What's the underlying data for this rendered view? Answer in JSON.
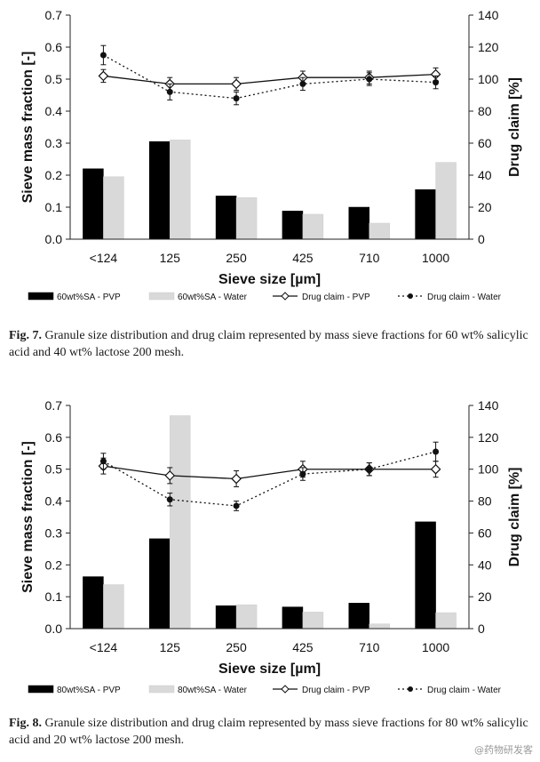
{
  "figures": [
    {
      "caption_label": "Fig. 7.",
      "caption_text": "Granule size distribution and drug claim represented by mass sieve fractions for 60 wt% salicylic acid and 40 wt% lactose 200 mesh.",
      "chart_data": {
        "type": "bar",
        "categories": [
          "<124",
          "125",
          "250",
          "425",
          "710",
          "1000"
        ],
        "xlabel": "Sieve size [µm]",
        "ylabel": "Sieve mass fraction [-]",
        "y2label": "Drug claim [%]",
        "ylim": [
          0,
          0.7
        ],
        "yticks": [
          "0.0",
          "0.1",
          "0.2",
          "0.3",
          "0.4",
          "0.5",
          "0.6",
          "0.7"
        ],
        "y2lim": [
          0,
          140
        ],
        "y2ticks": [
          "0",
          "20",
          "40",
          "60",
          "80",
          "100",
          "120",
          "140"
        ],
        "grid": false,
        "legend_position": "bottom",
        "series": [
          {
            "name": "60wt%SA - PVP",
            "kind": "bar",
            "axis": "left",
            "color": "#000000",
            "values": [
              0.22,
              0.305,
              0.135,
              0.088,
              0.1,
              0.155
            ]
          },
          {
            "name": "60wt%SA - Water",
            "kind": "bar",
            "axis": "left",
            "color": "#d9d9d9",
            "values": [
              0.195,
              0.31,
              0.13,
              0.078,
              0.05,
              0.24
            ]
          },
          {
            "name": "Drug claim - PVP",
            "kind": "line",
            "axis": "right",
            "marker": "open-diamond",
            "style": "solid",
            "values": [
              102,
              97,
              97,
              101,
              101,
              103
            ],
            "errors": [
              4,
              4,
              4,
              4,
              4,
              4
            ]
          },
          {
            "name": "Drug claim - Water",
            "kind": "line",
            "axis": "right",
            "marker": "filled-circle",
            "style": "dotted",
            "values": [
              115,
              92,
              88,
              97,
              100,
              98
            ],
            "errors": [
              6,
              5,
              4,
              4,
              4,
              4
            ]
          }
        ]
      }
    },
    {
      "caption_label": "Fig. 8.",
      "caption_text": "Granule size distribution and drug claim represented by mass sieve fractions for 80 wt% salicylic acid and 20 wt% lactose 200 mesh.",
      "chart_data": {
        "type": "bar",
        "categories": [
          "<124",
          "125",
          "250",
          "425",
          "710",
          "1000"
        ],
        "xlabel": "Sieve size [µm]",
        "ylabel": "Sieve mass fraction [-]",
        "y2label": "Drug claim [%]",
        "ylim": [
          0,
          0.7
        ],
        "yticks": [
          "0.0",
          "0.1",
          "0.2",
          "0.3",
          "0.4",
          "0.5",
          "0.6",
          "0.7"
        ],
        "y2lim": [
          0,
          140
        ],
        "y2ticks": [
          "0",
          "20",
          "40",
          "60",
          "80",
          "100",
          "120",
          "140"
        ],
        "grid": false,
        "legend_position": "bottom",
        "series": [
          {
            "name": "80wt%SA - PVP",
            "kind": "bar",
            "axis": "left",
            "color": "#000000",
            "values": [
              0.163,
              0.282,
              0.072,
              0.068,
              0.08,
              0.335
            ]
          },
          {
            "name": "80wt%SA - Water",
            "kind": "bar",
            "axis": "left",
            "color": "#d9d9d9",
            "values": [
              0.138,
              0.668,
              0.075,
              0.052,
              0.015,
              0.05
            ]
          },
          {
            "name": "Drug claim - PVP",
            "kind": "line",
            "axis": "right",
            "marker": "open-diamond",
            "style": "solid",
            "values": [
              102,
              96,
              94,
              100,
              100,
              100
            ],
            "errors": [
              5,
              5,
              5,
              5,
              4,
              5
            ]
          },
          {
            "name": "Drug claim - Water",
            "kind": "line",
            "axis": "right",
            "marker": "filled-circle",
            "style": "dotted",
            "values": [
              105,
              81,
              77,
              97,
              100,
              111
            ],
            "errors": [
              5,
              4,
              3,
              4,
              4,
              6
            ]
          }
        ]
      }
    }
  ],
  "watermark": "@药物研发客"
}
